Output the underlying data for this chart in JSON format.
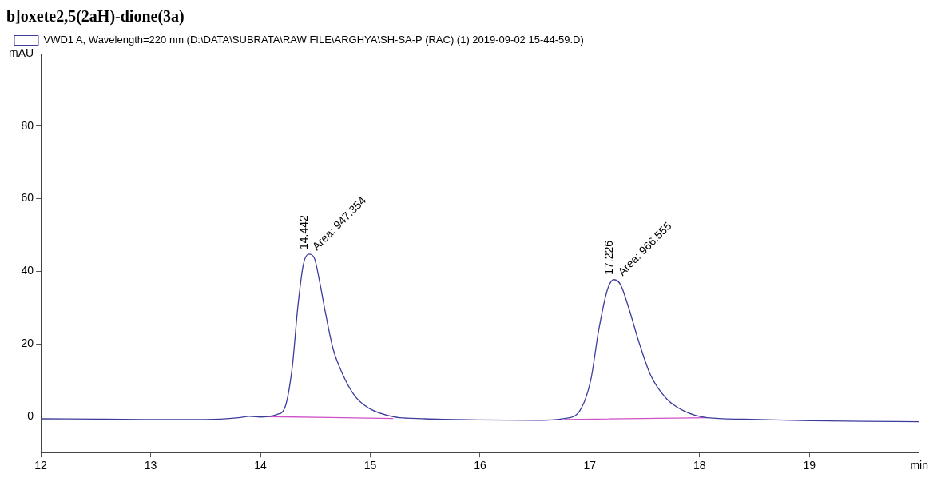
{
  "chart_data": {
    "type": "line",
    "title": "b]oxete2,5(2aH)-dione(3a)",
    "xlim": [
      12,
      20
    ],
    "xticks": [
      12,
      13,
      14,
      15,
      16,
      17,
      18,
      19,
      {
        "value": 20,
        "label": "min"
      }
    ],
    "ylim": [
      -10,
      100
    ],
    "yticks": [
      0,
      20,
      40,
      60,
      80,
      {
        "value": 100,
        "label": "mAU"
      }
    ],
    "grid": false,
    "legend": "top left",
    "marker": "none",
    "line_style": "solid",
    "series": [
      {
        "name": "VWD1 A, Wavelength=220 nm (D:\\DATA\\SUBRATA\\RAW FILE\\ARGHYA\\SH-SA-P (RAC) (1) 2019-09-02 15-44-59.D)",
        "color": "#3c3c9c",
        "x": [
          12,
          12.5,
          13,
          13.5,
          13.8,
          13.9,
          14,
          14.06,
          14.15,
          14.22,
          14.29,
          14.34,
          14.39,
          14.44,
          14.49,
          14.54,
          14.59,
          14.66,
          14.74,
          14.86,
          14.99,
          15.21,
          15.5,
          16,
          16.5,
          16.77,
          16.91,
          17.01,
          17.08,
          17.16,
          17.22,
          17.28,
          17.35,
          17.45,
          17.55,
          17.7,
          17.85,
          18.07,
          18.4,
          18.69,
          19,
          19.5,
          20
        ],
        "values": [
          -0.7,
          -0.8,
          -0.9,
          -0.9,
          -0.4,
          0,
          -0.2,
          -0.1,
          0.5,
          2.2,
          13.6,
          30,
          41.7,
          44.7,
          43.7,
          37,
          28.9,
          18.8,
          12.2,
          5.6,
          2.2,
          -0.1,
          -0.7,
          -1,
          -1.1,
          -0.6,
          1.6,
          10.2,
          23.6,
          34.9,
          37.7,
          36.3,
          30.3,
          20.2,
          11.6,
          4.8,
          1.6,
          -0.4,
          -0.8,
          -1,
          -1.2,
          -1.4,
          -1.5
        ]
      },
      {
        "color": "#d050c8",
        "x": [
          14.06,
          15.21
        ],
        "values": [
          -0.1,
          -0.6
        ]
      },
      {
        "color": "#d050c8",
        "x": [
          16.77,
          18.07
        ],
        "values": [
          -0.9,
          -0.4
        ]
      }
    ],
    "annotations": [
      {
        "text": "14.442",
        "x": 14.442,
        "y": 44.7
      },
      "Area: 947.354",
      {
        "text": "17.226",
        "x": 17.226,
        "y": 37.7
      },
      "Area: 966.555"
    ]
  }
}
